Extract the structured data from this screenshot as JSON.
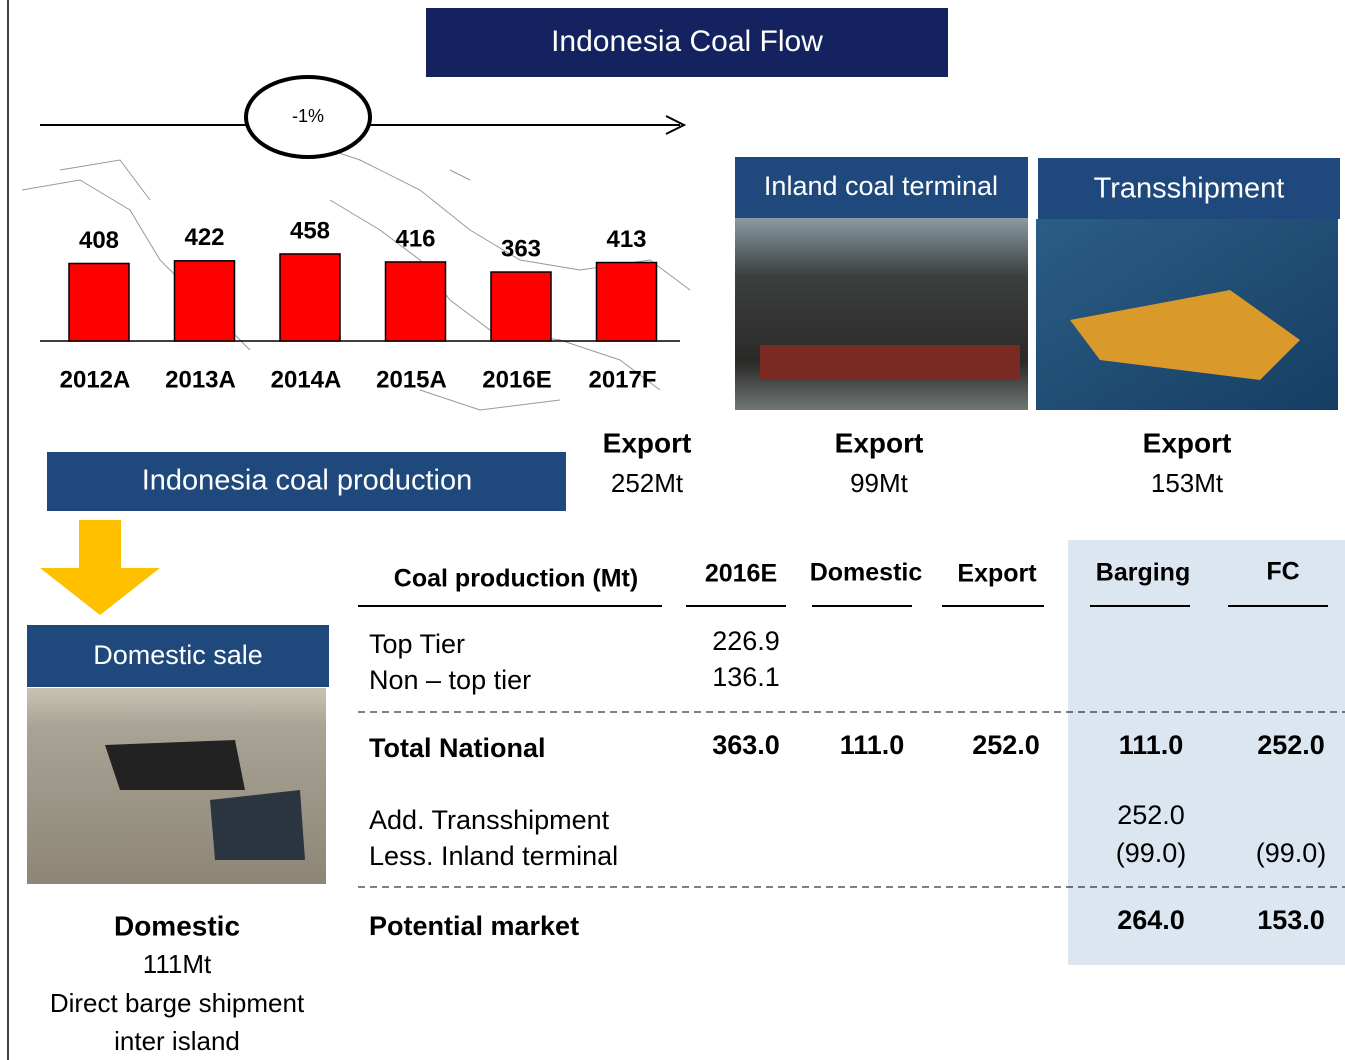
{
  "header": {
    "title": "Indonesia Coal Flow"
  },
  "chart_data": {
    "type": "bar",
    "annotation": "-1%",
    "categories": [
      "2012A",
      "2013A",
      "2014A",
      "2015A",
      "2016E",
      "2017F"
    ],
    "values": [
      408,
      422,
      458,
      416,
      363,
      413
    ],
    "color": "#ff0000",
    "caption": "Indonesia coal production"
  },
  "flows": [
    {
      "label": "Inland coal terminal",
      "kind": "Export",
      "amount": "99Mt"
    },
    {
      "label": "Transshipment",
      "kind": "Export",
      "amount": "153Mt"
    }
  ],
  "total_export": {
    "kind": "Export",
    "amount": "252Mt"
  },
  "domestic": {
    "label": "Domestic sale",
    "kind": "Domestic",
    "amount": "111Mt",
    "note": [
      "Direct barge shipment",
      "inter island"
    ]
  },
  "table": {
    "header": [
      "Coal production (Mt)",
      "2016E",
      "Domestic",
      "Export",
      "Barging",
      "FC"
    ],
    "rows": [
      {
        "cells": [
          "Top Tier",
          "226.9",
          null,
          null,
          null,
          null
        ]
      },
      {
        "cells": [
          "Non – top tier",
          "136.1",
          null,
          null,
          null,
          null
        ]
      },
      {
        "bold": true,
        "cells": [
          "Total National",
          "363.0",
          "111.0",
          "252.0",
          "111.0",
          "252.0"
        ]
      },
      {
        "cells": [
          "Add. Transshipment",
          null,
          null,
          null,
          "252.0",
          null
        ]
      },
      {
        "cells": [
          "Less. Inland terminal",
          null,
          null,
          null,
          "(99.0)",
          "(99.0)"
        ]
      },
      {
        "bold": true,
        "cells": [
          "Potential market",
          null,
          null,
          null,
          "264.0",
          "153.0"
        ]
      }
    ]
  }
}
